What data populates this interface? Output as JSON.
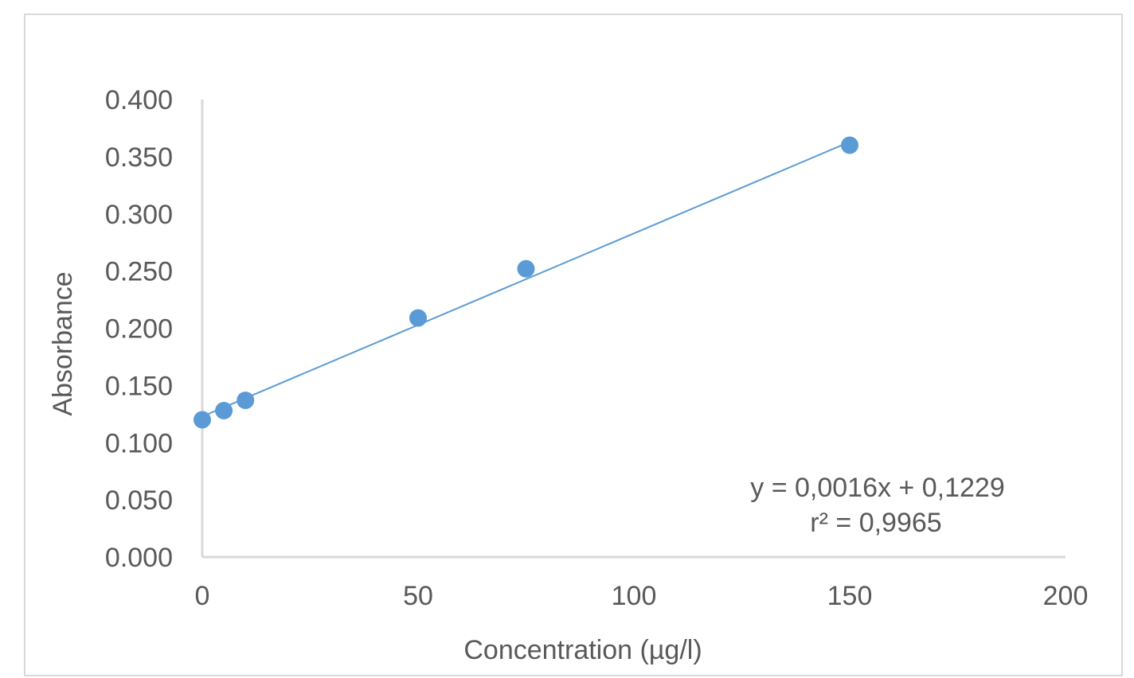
{
  "chart_data": {
    "type": "scatter",
    "title": "",
    "xlabel": "Concentration (µg/l)",
    "ylabel": "Absorbance",
    "xlim": [
      0,
      200
    ],
    "ylim": [
      0,
      0.4
    ],
    "x_ticks": [
      "0",
      "50",
      "100",
      "150",
      "200"
    ],
    "y_ticks": [
      "0.000",
      "0.050",
      "0.100",
      "0.150",
      "0.200",
      "0.250",
      "0.300",
      "0.350",
      "0.400"
    ],
    "grid": false,
    "legend": "none",
    "series": [
      {
        "x": [
          0,
          5,
          10,
          50,
          75,
          150
        ],
        "y": [
          0.12,
          0.128,
          0.137,
          0.209,
          0.252,
          0.36
        ],
        "color": "#5b9bd5"
      }
    ],
    "trendline": {
      "type": "linear",
      "slope": 0.0016,
      "intercept": 0.1229,
      "x_range": [
        0,
        150
      ],
      "color": "#5b9bd5"
    },
    "annotations": {
      "equation": "y = 0,0016x + 0,1229",
      "r_squared": "r² = 0,9965"
    },
    "colors": {
      "axis": "#d9d9d9",
      "text": "#595959",
      "border": "#d9d9d9"
    }
  }
}
